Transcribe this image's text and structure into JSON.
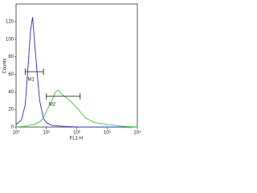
{
  "chart_data": {
    "type": "line",
    "xlabel": "FL1-H",
    "ylabel": "Counts",
    "xscale": "log",
    "xlim": [
      1,
      10000
    ],
    "xticks": [
      {
        "value": 1,
        "label": "10⁰"
      },
      {
        "value": 10,
        "label": "10¹"
      },
      {
        "value": 100,
        "label": "10²"
      },
      {
        "value": 1000,
        "label": "10³"
      },
      {
        "value": 10000,
        "label": "10⁴"
      }
    ],
    "ylim": [
      0,
      140
    ],
    "yticks": [
      0,
      20,
      40,
      60,
      80,
      100,
      120
    ],
    "series": [
      {
        "color": "#2b2bd6",
        "x": [
          1,
          1.5,
          2,
          2.5,
          3,
          3.5,
          4,
          5,
          6,
          8,
          10,
          15,
          30,
          100,
          1000,
          10000
        ],
        "values": [
          3,
          8,
          25,
          70,
          110,
          125,
          100,
          60,
          30,
          10,
          5,
          2,
          1,
          0,
          0,
          0
        ]
      },
      {
        "color": "#2fcf2f",
        "x": [
          1,
          2,
          4,
          6,
          8,
          10,
          15,
          20,
          25,
          30,
          40,
          60,
          100,
          150,
          200,
          400,
          1000,
          3000,
          10000
        ],
        "values": [
          0,
          1,
          3,
          6,
          10,
          18,
          30,
          40,
          42,
          38,
          35,
          30,
          22,
          15,
          10,
          5,
          3,
          1,
          0
        ]
      }
    ],
    "markers": [
      {
        "label": "M1",
        "x": [
          2,
          8
        ],
        "y": 63
      },
      {
        "label": "M2",
        "x": [
          10,
          130
        ],
        "y": 35
      }
    ]
  }
}
